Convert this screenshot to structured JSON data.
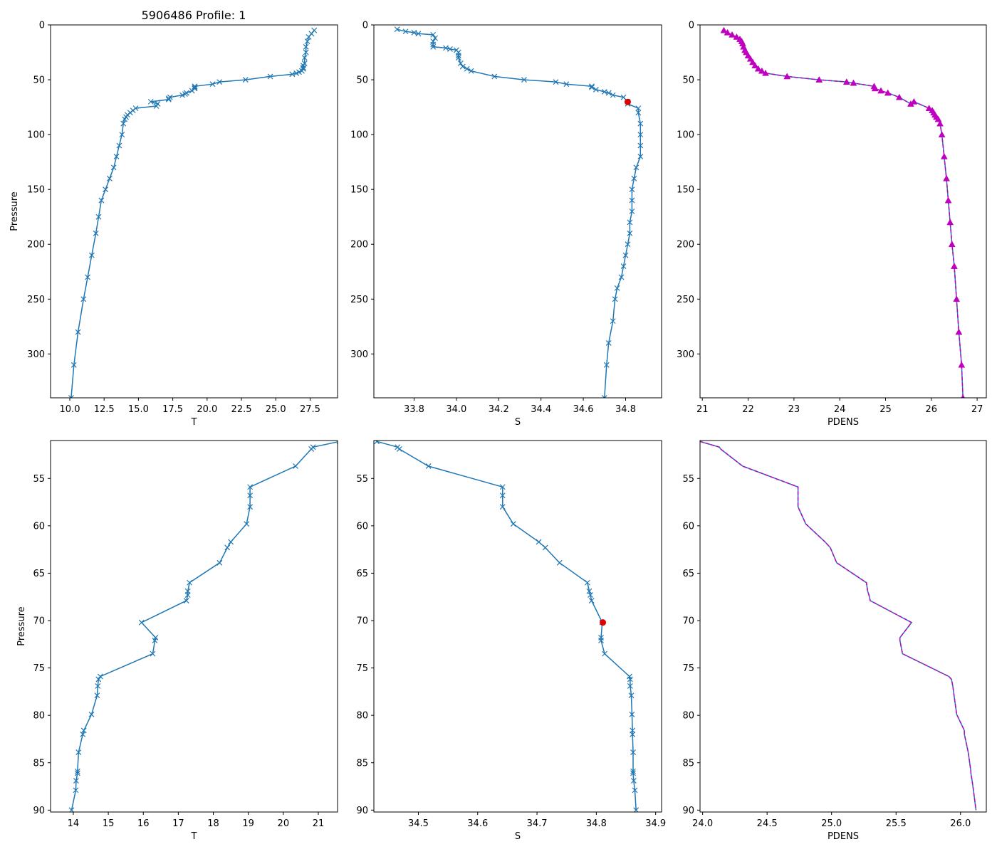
{
  "figure_title": "5906486 Profile: 1",
  "colors": {
    "line": "#1f77b4",
    "density": "#bf00bf",
    "highlight": "#e00000"
  },
  "chart_data": [
    {
      "id": "t-full",
      "type": "line",
      "xlabel": "T",
      "ylabel": "Pressure",
      "xlim": [
        8.6,
        29.5
      ],
      "ylim": [
        340,
        0
      ],
      "xticks": [
        10.0,
        12.5,
        15.0,
        17.5,
        20.0,
        22.5,
        25.0,
        27.5
      ],
      "xtick_labels": [
        "10.0",
        "12.5",
        "15.0",
        "17.5",
        "20.0",
        "22.5",
        "25.0",
        "27.5"
      ],
      "yticks": [
        0,
        50,
        100,
        150,
        200,
        250,
        300
      ],
      "ytick_labels": [
        "0",
        "50",
        "100",
        "150",
        "200",
        "250",
        "300"
      ],
      "marker": "x",
      "style": "solid",
      "series": [
        {
          "name": "T",
          "x": [
            27.8,
            27.6,
            27.4,
            27.3,
            27.2,
            27.2,
            27.1,
            27.1,
            27.0,
            27.0,
            27.0,
            26.9,
            26.7,
            26.5,
            26.2,
            24.6,
            22.8,
            20.9,
            20.4,
            19.1,
            19.1,
            19.1,
            18.9,
            18.5,
            18.4,
            18.2,
            17.3,
            17.2,
            17.2,
            15.9,
            16.4,
            16.3,
            14.8,
            14.6,
            14.4,
            14.2,
            14.1,
            14.0,
            13.9,
            13.8,
            13.6,
            13.4,
            13.2,
            12.9,
            12.6,
            12.3,
            12.1,
            11.9,
            11.6,
            11.3,
            11.0,
            10.6,
            10.3,
            10.1
          ],
          "y": [
            5,
            8,
            11,
            15,
            20,
            25,
            30,
            35,
            37,
            39,
            40,
            42,
            43,
            44,
            45,
            47,
            50,
            52,
            54,
            56,
            57,
            58,
            60,
            62,
            63,
            64,
            66,
            67,
            68,
            70,
            72,
            74,
            76,
            78,
            80,
            82,
            84,
            86,
            90,
            100,
            110,
            120,
            130,
            140,
            150,
            160,
            175,
            190,
            210,
            230,
            250,
            280,
            310,
            340
          ]
        }
      ]
    },
    {
      "id": "s-full",
      "type": "line",
      "xlabel": "S",
      "ylabel": "",
      "xlim": [
        33.61,
        34.97
      ],
      "ylim": [
        340,
        0
      ],
      "xticks": [
        33.8,
        34.0,
        34.2,
        34.4,
        34.6,
        34.8
      ],
      "xtick_labels": [
        "33.8",
        "34.0",
        "34.2",
        "34.4",
        "34.6",
        "34.8"
      ],
      "yticks": [
        0,
        50,
        100,
        150,
        200,
        250,
        300
      ],
      "ytick_labels": [
        "0",
        "50",
        "100",
        "150",
        "200",
        "250",
        "300"
      ],
      "marker": "x",
      "style": "solid",
      "series": [
        {
          "name": "S",
          "x": [
            33.72,
            33.76,
            33.8,
            33.82,
            33.89,
            33.9,
            33.89,
            33.89,
            33.89,
            33.95,
            33.97,
            34.0,
            34.01,
            34.01,
            34.01,
            34.02,
            34.03,
            34.05,
            34.07,
            34.18,
            34.32,
            34.47,
            34.52,
            34.64,
            34.64,
            34.66,
            34.7,
            34.72,
            34.74,
            34.79,
            34.81,
            34.81,
            34.86,
            34.86,
            34.87,
            34.87,
            34.87,
            34.87,
            34.85,
            34.84,
            34.83,
            34.83,
            34.83,
            34.82,
            34.82,
            34.81,
            34.8,
            34.79,
            34.78,
            34.76,
            34.75,
            34.74,
            34.72,
            34.71,
            34.7
          ],
          "y": [
            4,
            6,
            7,
            8,
            9,
            12,
            15,
            18,
            20,
            21,
            22,
            23,
            25,
            28,
            30,
            35,
            38,
            40,
            42,
            47,
            50,
            52,
            54,
            56,
            57,
            59,
            61,
            62,
            64,
            66,
            70,
            72,
            76,
            80,
            90,
            100,
            110,
            120,
            130,
            140,
            150,
            160,
            170,
            180,
            190,
            200,
            210,
            220,
            230,
            240,
            250,
            270,
            290,
            310,
            340
          ]
        }
      ],
      "highlight": {
        "x": 34.81,
        "y": 70.2
      }
    },
    {
      "id": "pdens-full",
      "type": "line",
      "xlabel": "PDENS",
      "ylabel": "",
      "xlim": [
        20.95,
        27.2
      ],
      "ylim": [
        340,
        0
      ],
      "xticks": [
        21,
        22,
        23,
        24,
        25,
        26,
        27
      ],
      "xtick_labels": [
        "21",
        "22",
        "23",
        "24",
        "25",
        "26",
        "27"
      ],
      "yticks": [
        0,
        50,
        100,
        150,
        200,
        250,
        300
      ],
      "ytick_labels": [
        "0",
        "50",
        "100",
        "150",
        "200",
        "250",
        "300"
      ],
      "marker": "triangle",
      "style": "dashed",
      "series": [
        {
          "name": "PDENS",
          "x": [
            21.47,
            21.55,
            21.65,
            21.75,
            21.82,
            21.86,
            21.88,
            21.9,
            21.93,
            21.96,
            22.0,
            22.05,
            22.1,
            22.15,
            22.22,
            22.3,
            22.38,
            22.85,
            23.55,
            24.15,
            24.3,
            24.75,
            24.77,
            24.9,
            25.05,
            25.3,
            25.55,
            25.62,
            25.95,
            26.02,
            26.05,
            26.08,
            26.11,
            26.15,
            26.19,
            26.23,
            26.28,
            26.33,
            26.37,
            26.41,
            26.45,
            26.5,
            26.55,
            26.6,
            26.66,
            26.69
          ],
          "y": [
            5,
            7,
            9,
            11,
            13,
            15,
            17,
            20,
            23,
            25,
            28,
            31,
            34,
            37,
            40,
            42,
            44,
            47,
            50,
            52,
            53,
            56,
            58,
            60,
            62,
            66,
            72,
            70,
            76,
            78,
            80,
            82,
            84,
            86,
            90,
            100,
            120,
            140,
            160,
            180,
            200,
            220,
            250,
            280,
            310,
            340
          ]
        }
      ]
    },
    {
      "id": "t-zoom",
      "type": "line",
      "xlabel": "T",
      "ylabel": "Pressure",
      "xlim": [
        13.35,
        21.55
      ],
      "ylim": [
        90.2,
        51
      ],
      "xticks": [
        14,
        15,
        16,
        17,
        18,
        19,
        20,
        21
      ],
      "xtick_labels": [
        "14",
        "15",
        "16",
        "17",
        "18",
        "19",
        "20",
        "21"
      ],
      "yticks": [
        55,
        60,
        65,
        70,
        75,
        80,
        85,
        90
      ],
      "ytick_labels": [
        "55",
        "60",
        "65",
        "70",
        "75",
        "80",
        "85",
        "90"
      ],
      "marker": "x",
      "style": "solid",
      "series": [
        {
          "name": "T",
          "x": [
            21.6,
            20.85,
            20.8,
            20.35,
            19.05,
            19.05,
            19.05,
            18.95,
            18.5,
            18.4,
            18.18,
            17.32,
            17.27,
            17.27,
            17.23,
            15.95,
            16.35,
            16.33,
            16.27,
            14.77,
            14.72,
            14.7,
            14.68,
            14.52,
            14.3,
            14.27,
            14.15,
            14.12,
            14.12,
            14.08,
            14.07,
            13.95
          ],
          "y": [
            51.1,
            51.7,
            51.9,
            53.7,
            55.9,
            56.8,
            58.0,
            59.8,
            61.7,
            62.3,
            63.9,
            66.0,
            66.9,
            67.3,
            67.9,
            70.2,
            71.8,
            72.1,
            73.5,
            75.9,
            76.2,
            76.9,
            77.9,
            79.9,
            81.6,
            82.0,
            83.9,
            85.9,
            86.1,
            86.9,
            87.9,
            90.0
          ]
        }
      ]
    },
    {
      "id": "s-zoom",
      "type": "line",
      "xlabel": "S",
      "ylabel": "",
      "xlim": [
        34.425,
        34.91
      ],
      "ylim": [
        90.2,
        51
      ],
      "xticks": [
        34.5,
        34.6,
        34.7,
        34.8,
        34.9
      ],
      "xtick_labels": [
        "34.5",
        "34.6",
        "34.7",
        "34.8",
        "34.9"
      ],
      "yticks": [
        55,
        60,
        65,
        70,
        75,
        80,
        85,
        90
      ],
      "ytick_labels": [
        "55",
        "60",
        "65",
        "70",
        "75",
        "80",
        "85",
        "90"
      ],
      "marker": "x",
      "style": "solid",
      "series": [
        {
          "name": "S",
          "x": [
            34.43,
            34.465,
            34.468,
            34.517,
            34.642,
            34.642,
            34.642,
            34.66,
            34.703,
            34.714,
            34.738,
            34.785,
            34.788,
            34.79,
            34.792,
            34.81,
            34.808,
            34.808,
            34.814,
            34.856,
            34.857,
            34.857,
            34.859,
            34.86,
            34.861,
            34.861,
            34.862,
            34.862,
            34.862,
            34.863,
            34.865,
            34.867
          ],
          "y": [
            51.1,
            51.7,
            51.9,
            53.7,
            55.9,
            56.8,
            58.0,
            59.8,
            61.7,
            62.3,
            63.9,
            66.0,
            66.9,
            67.3,
            67.9,
            70.2,
            71.8,
            72.1,
            73.5,
            75.9,
            76.2,
            76.9,
            77.9,
            79.9,
            81.6,
            82.0,
            83.9,
            85.9,
            86.1,
            86.9,
            87.9,
            90.0
          ]
        }
      ],
      "highlight": {
        "x": 34.811,
        "y": 70.2
      }
    },
    {
      "id": "pdens-zoom",
      "type": "line",
      "xlabel": "PDENS",
      "ylabel": "",
      "xlim": [
        23.98,
        26.2
      ],
      "ylim": [
        90.2,
        51
      ],
      "xticks": [
        24.0,
        24.5,
        25.0,
        25.5,
        26.0
      ],
      "xtick_labels": [
        "24.0",
        "24.5",
        "25.0",
        "25.5",
        "26.0"
      ],
      "yticks": [
        55,
        60,
        65,
        70,
        75,
        80,
        85,
        90
      ],
      "ytick_labels": [
        "55",
        "60",
        "65",
        "70",
        "75",
        "80",
        "85",
        "90"
      ],
      "marker": "none",
      "style": "dashed",
      "series": [
        {
          "name": "PDENS",
          "x": [
            23.98,
            24.13,
            24.14,
            24.31,
            24.74,
            24.74,
            24.74,
            24.8,
            24.95,
            24.99,
            25.04,
            25.27,
            25.28,
            25.29,
            25.3,
            25.62,
            25.53,
            25.53,
            25.55,
            25.91,
            25.93,
            25.94,
            25.95,
            25.97,
            26.03,
            26.03,
            26.06,
            26.08,
            26.08,
            26.09,
            26.1,
            26.12
          ],
          "y": [
            51.1,
            51.7,
            51.9,
            53.7,
            55.9,
            56.8,
            58.0,
            59.8,
            61.7,
            62.3,
            63.9,
            66.0,
            66.9,
            67.3,
            67.9,
            70.2,
            71.8,
            72.1,
            73.5,
            75.9,
            76.2,
            76.9,
            77.9,
            79.9,
            81.6,
            82.0,
            83.9,
            85.9,
            86.1,
            86.9,
            87.9,
            90.0
          ]
        }
      ]
    }
  ]
}
